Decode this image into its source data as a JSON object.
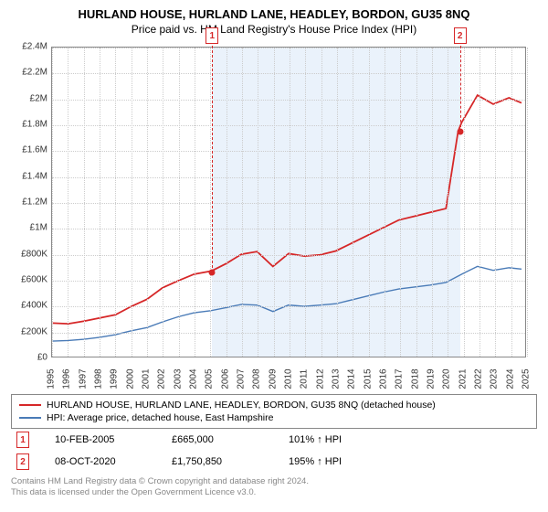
{
  "title": "HURLAND HOUSE, HURLAND LANE, HEADLEY, BORDON, GU35 8NQ",
  "subtitle": "Price paid vs. HM Land Registry's House Price Index (HPI)",
  "chart": {
    "type": "line",
    "background_color": "#ffffff",
    "band_color": "#eaf2fb",
    "grid_color": "#cccccc",
    "ylim": [
      0,
      2400000
    ],
    "ytick_step": 200000,
    "ytick_labels": [
      "£0",
      "£200K",
      "£400K",
      "£600K",
      "£800K",
      "£1M",
      "£1.2M",
      "£1.4M",
      "£1.6M",
      "£1.8M",
      "£2M",
      "£2.2M",
      "£2.4M"
    ],
    "xlim": [
      1995,
      2025
    ],
    "xticks": [
      1995,
      1996,
      1997,
      1998,
      1999,
      2000,
      2001,
      2002,
      2003,
      2004,
      2005,
      2006,
      2007,
      2008,
      2009,
      2010,
      2011,
      2012,
      2013,
      2014,
      2015,
      2016,
      2017,
      2018,
      2019,
      2020,
      2021,
      2022,
      2023,
      2024,
      2025
    ],
    "band": {
      "start": 2005.11,
      "end": 2020.77
    },
    "series": [
      {
        "name": "property",
        "color": "#d62728",
        "width": 1.8,
        "x": [
          1995,
          1996,
          1997,
          1998,
          1999,
          2000,
          2001,
          2002,
          2003,
          2004,
          2005.11,
          2006,
          2007,
          2008,
          2009,
          2010,
          2011,
          2012,
          2013,
          2014,
          2015,
          2016,
          2017,
          2018,
          2019,
          2020,
          2020.77,
          2021,
          2022,
          2023,
          2024,
          2024.8
        ],
        "y": [
          260000,
          255000,
          275000,
          300000,
          325000,
          390000,
          445000,
          535000,
          590000,
          640000,
          665000,
          720000,
          795000,
          815000,
          700000,
          800000,
          780000,
          790000,
          820000,
          880000,
          940000,
          1000000,
          1060000,
          1090000,
          1120000,
          1150000,
          1750850,
          1820000,
          2030000,
          1960000,
          2010000,
          1970000
        ]
      },
      {
        "name": "hpi",
        "color": "#4a7bb7",
        "width": 1.4,
        "x": [
          1995,
          1996,
          1997,
          1998,
          1999,
          2000,
          2001,
          2002,
          2003,
          2004,
          2005,
          2006,
          2007,
          2008,
          2009,
          2010,
          2011,
          2012,
          2013,
          2014,
          2015,
          2016,
          2017,
          2018,
          2019,
          2020,
          2021,
          2022,
          2023,
          2024,
          2024.8
        ],
        "y": [
          120000,
          125000,
          135000,
          150000,
          170000,
          200000,
          225000,
          270000,
          310000,
          340000,
          355000,
          380000,
          405000,
          400000,
          350000,
          400000,
          390000,
          400000,
          410000,
          440000,
          470000,
          500000,
          525000,
          540000,
          555000,
          575000,
          640000,
          700000,
          670000,
          690000,
          680000
        ]
      }
    ],
    "markers": [
      {
        "num": "1",
        "x": 2005.11,
        "y": 665000,
        "color": "#d62728"
      },
      {
        "num": "2",
        "x": 2020.77,
        "y": 1750850,
        "color": "#d62728"
      }
    ],
    "label_fontsize": 10,
    "title_fontsize": 13
  },
  "legend": {
    "items": [
      {
        "color": "#d62728",
        "label": "HURLAND HOUSE, HURLAND LANE, HEADLEY, BORDON, GU35 8NQ (detached house)"
      },
      {
        "color": "#4a7bb7",
        "label": "HPI: Average price, detached house, East Hampshire"
      }
    ]
  },
  "transactions": [
    {
      "num": "1",
      "date": "10-FEB-2005",
      "price": "£665,000",
      "vs": "101% ↑ HPI"
    },
    {
      "num": "2",
      "date": "08-OCT-2020",
      "price": "£1,750,850",
      "vs": "195% ↑ HPI"
    }
  ],
  "footer": {
    "line1": "Contains HM Land Registry data © Crown copyright and database right 2024.",
    "line2": "This data is licensed under the Open Government Licence v3.0."
  }
}
